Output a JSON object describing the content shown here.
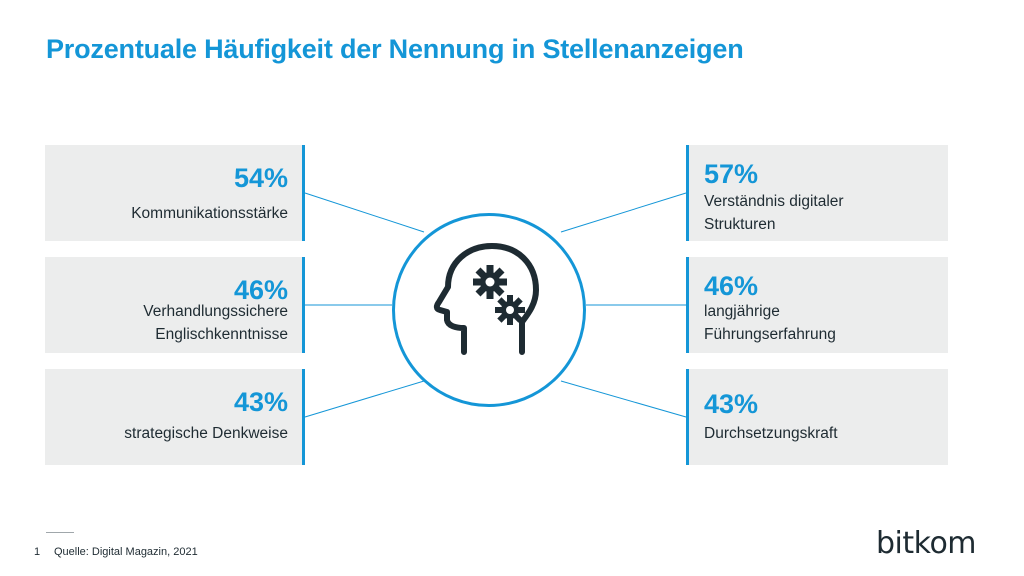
{
  "title": "Prozentuale Häufigkeit der Nennung in Stellenanzeigen",
  "chart_data": {
    "type": "table",
    "title": "Prozentuale Häufigkeit der Nennung in Stellenanzeigen",
    "items": [
      {
        "value": 54,
        "display": "54%",
        "label_lines": [
          "Kommunikationsstärke"
        ],
        "side": "left"
      },
      {
        "value": 46,
        "display": "46%",
        "label_lines": [
          "Verhandlungssichere",
          "Englischkenntnisse"
        ],
        "side": "left"
      },
      {
        "value": 43,
        "display": "43%",
        "label_lines": [
          "strategische Denkweise"
        ],
        "side": "left"
      },
      {
        "value": 57,
        "display": "57%",
        "label_lines": [
          "Verständnis digitaler",
          "Strukturen"
        ],
        "side": "right"
      },
      {
        "value": 46,
        "display": "46%",
        "label_lines": [
          "langjährige",
          "Führungserfahrung"
        ],
        "side": "right"
      },
      {
        "value": 43,
        "display": "43%",
        "label_lines": [
          "Durchsetzungskraft"
        ],
        "side": "right"
      }
    ]
  },
  "footnote": {
    "number": "1",
    "text": "Quelle: Digital Magazin, 2021"
  },
  "logo": "bitkom",
  "colors": {
    "accent": "#1496d7",
    "card_bg": "#eceded",
    "text": "#1e2b32"
  },
  "icon": "head-with-gears-icon"
}
